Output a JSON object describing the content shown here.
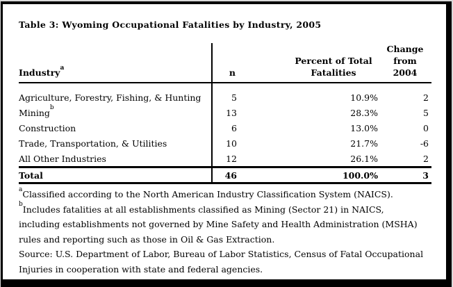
{
  "title": "Table 3: Wyoming Occupational Fatalities by Industry, 2005",
  "table": {
    "header": {
      "industry": "Industry",
      "industry_sup": "a",
      "n": "n",
      "percent_line1": "Percent of Total",
      "percent_line2": "Fatalities",
      "change_line1": "Change",
      "change_line2": "from",
      "change_line3": "2004"
    },
    "rows": [
      {
        "industry": "Agriculture, Forestry, Fishing, & Hunting",
        "sup": "",
        "n": "5",
        "percent": "10.9%",
        "change": "2"
      },
      {
        "industry": "Mining",
        "sup": "b",
        "n": "13",
        "percent": "28.3%",
        "change": "5"
      },
      {
        "industry": "Construction",
        "sup": "",
        "n": "6",
        "percent": "13.0%",
        "change": "0"
      },
      {
        "industry": "Trade, Transportation, & Utilities",
        "sup": "",
        "n": "10",
        "percent": "21.7%",
        "change": "-6"
      },
      {
        "industry": "All Other Industries",
        "sup": "",
        "n": "12",
        "percent": "26.1%",
        "change": "2"
      }
    ],
    "total": {
      "label": "Total",
      "n": "46",
      "percent": "100.0%",
      "change": "3"
    }
  },
  "footnotes": [
    {
      "sup": "a",
      "text": "Classified according to the North American Industry Classification System (NAICS)."
    },
    {
      "sup": "b",
      "text": "Includes fatalities at all establishments classified as Mining (Sector 21) in NAICS,"
    },
    {
      "sup": "",
      "text": "including establishments not governed by Mine Safety and Health Administration (MSHA)"
    },
    {
      "sup": "",
      "text": "rules and reporting such as those in Oil & Gas Extraction."
    },
    {
      "sup": "",
      "text": "Source: U.S. Department of Labor, Bureau of Labor Statistics, Census of Fatal Occupational"
    },
    {
      "sup": "",
      "text": "Injuries in cooperation with state and federal agencies."
    }
  ],
  "colors": {
    "text": "#000000",
    "background": "#ffffff",
    "frame_border": "#000000",
    "page_edge": "#d9d9d9"
  }
}
